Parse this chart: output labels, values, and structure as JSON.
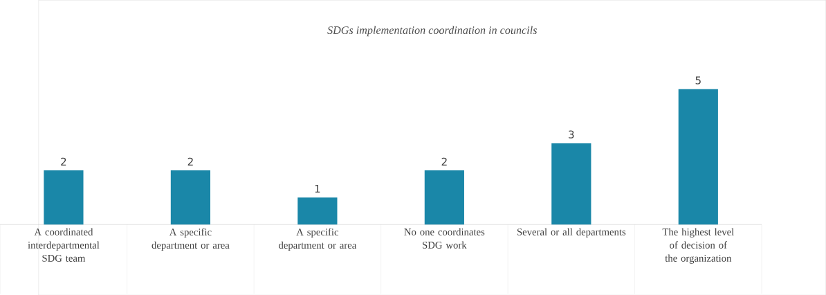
{
  "chart_data": {
    "type": "bar",
    "title": "SDGs implementation coordination in councils",
    "categories": [
      "A coordinated interdepartmental SDG team",
      "A specific department or area",
      "A specific department or area",
      "No one coordinates SDG work",
      "Several or all departments",
      "The highest level of decision of the organization"
    ],
    "values": [
      2,
      2,
      1,
      2,
      3,
      5
    ],
    "color": "#1a87a8",
    "data_labels": true
  }
}
